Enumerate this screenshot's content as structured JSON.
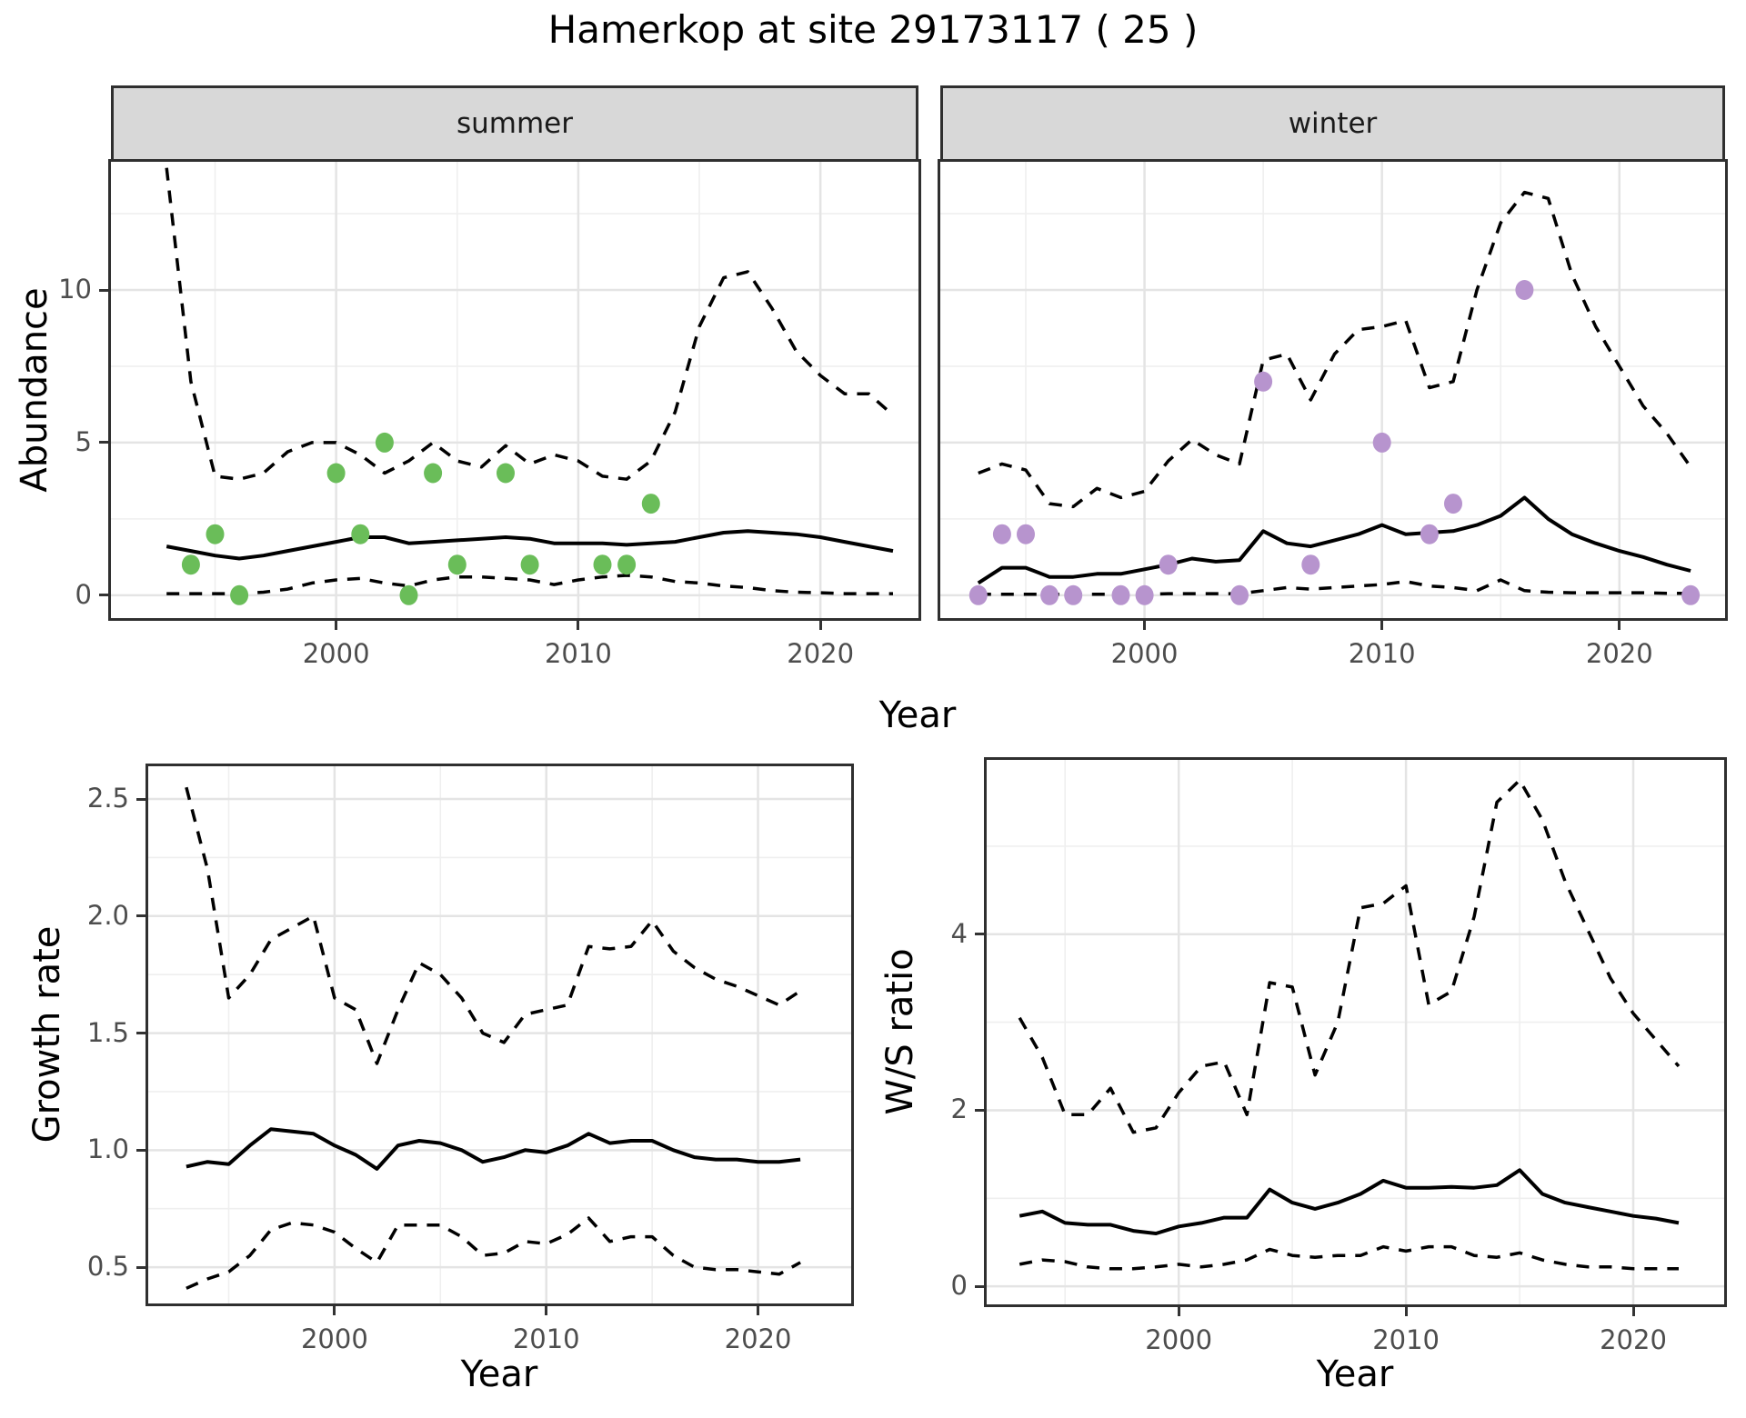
{
  "title": "Hamerkop at site 29173117 ( 25 )",
  "axes": {
    "abundance_label": "Abundance",
    "growth_label": "Growth rate",
    "ws_label": "W/S ratio",
    "year_label_top": "Year",
    "year_label_growth": "Year",
    "year_label_ws": "Year"
  },
  "facets": {
    "summer_label": "summer",
    "winter_label": "winter"
  },
  "colors": {
    "summer_point": "#6abd59",
    "winter_point": "#b794ce",
    "line": "#000000",
    "strip_bg": "#d8d8d8",
    "grid_major": "#e4e4e4",
    "grid_minor": "#efefef",
    "axis_text": "#4d4d4d"
  },
  "chart_data": [
    {
      "id": "abundance-summer",
      "type": "line",
      "panel": "summer",
      "facet_label": "summer",
      "ylabel": "Abundance",
      "xlabel": "Year",
      "x": [
        1993,
        1994,
        1995,
        1996,
        1997,
        1998,
        1999,
        2000,
        2001,
        2002,
        2003,
        2004,
        2005,
        2006,
        2007,
        2008,
        2009,
        2010,
        2011,
        2012,
        2013,
        2014,
        2015,
        2016,
        2017,
        2018,
        2019,
        2020,
        2021,
        2022,
        2023
      ],
      "x_ticks": {
        "major": [
          2000,
          2010,
          2020
        ],
        "labels": [
          "2000",
          "2010",
          "2020"
        ],
        "minor": [
          1995,
          2005,
          2015
        ]
      },
      "y_ticks": {
        "major": [
          0,
          5,
          10
        ],
        "labels": [
          "0",
          "5",
          "10"
        ],
        "minor": [
          2.5,
          7.5,
          12.5
        ],
        "show_labels": true
      },
      "series": [
        {
          "name": "upper_ci",
          "style": "dashed",
          "values": [
            14.0,
            7.0,
            3.9,
            3.8,
            4.0,
            4.7,
            5.0,
            5.0,
            4.6,
            4.0,
            4.4,
            5.0,
            4.4,
            4.2,
            4.9,
            4.3,
            4.6,
            4.4,
            3.9,
            3.8,
            4.4,
            6.0,
            8.8,
            10.4,
            10.6,
            9.4,
            8.0,
            7.2,
            6.6,
            6.6,
            5.9
          ]
        },
        {
          "name": "lower_ci",
          "style": "dashed",
          "values": [
            0.05,
            0.05,
            0.05,
            0.05,
            0.1,
            0.2,
            0.4,
            0.5,
            0.55,
            0.4,
            0.3,
            0.5,
            0.6,
            0.6,
            0.55,
            0.5,
            0.35,
            0.5,
            0.6,
            0.65,
            0.6,
            0.45,
            0.4,
            0.3,
            0.25,
            0.15,
            0.1,
            0.08,
            0.05,
            0.05,
            0.05
          ]
        },
        {
          "name": "median",
          "style": "solid",
          "values": [
            1.6,
            1.45,
            1.3,
            1.2,
            1.3,
            1.45,
            1.6,
            1.75,
            1.9,
            1.9,
            1.7,
            1.75,
            1.8,
            1.85,
            1.9,
            1.85,
            1.7,
            1.7,
            1.7,
            1.65,
            1.7,
            1.75,
            1.9,
            2.05,
            2.1,
            2.05,
            2.0,
            1.9,
            1.75,
            1.6,
            1.45
          ]
        }
      ],
      "points": {
        "color": "#6abd59",
        "data": [
          [
            1994,
            1
          ],
          [
            1995,
            2
          ],
          [
            1996,
            0
          ],
          [
            2000,
            4
          ],
          [
            2001,
            2
          ],
          [
            2002,
            5
          ],
          [
            2003,
            0
          ],
          [
            2004,
            4
          ],
          [
            2005,
            1
          ],
          [
            2007,
            4
          ],
          [
            2008,
            1
          ],
          [
            2011,
            1
          ],
          [
            2012,
            1
          ],
          [
            2013,
            3
          ]
        ]
      }
    },
    {
      "id": "abundance-winter",
      "type": "line",
      "panel": "winter",
      "facet_label": "winter",
      "ylabel": "Abundance",
      "xlabel": "Year",
      "x": [
        1993,
        1994,
        1995,
        1996,
        1997,
        1998,
        1999,
        2000,
        2001,
        2002,
        2003,
        2004,
        2005,
        2006,
        2007,
        2008,
        2009,
        2010,
        2011,
        2012,
        2013,
        2014,
        2015,
        2016,
        2017,
        2018,
        2019,
        2020,
        2021,
        2022,
        2023
      ],
      "x_ticks": {
        "major": [
          2000,
          2010,
          2020
        ],
        "labels": [
          "2000",
          "2010",
          "2020"
        ],
        "minor": [
          1995,
          2005,
          2015
        ]
      },
      "y_ticks": {
        "major": [
          0,
          5,
          10
        ],
        "labels": [
          "0",
          "5",
          "10"
        ],
        "minor": [
          2.5,
          7.5,
          12.5
        ],
        "show_labels": false
      },
      "series": [
        {
          "name": "upper_ci",
          "style": "dashed",
          "values": [
            4.0,
            4.3,
            4.1,
            3.0,
            2.9,
            3.5,
            3.2,
            3.4,
            4.4,
            5.1,
            4.6,
            4.3,
            7.7,
            7.9,
            6.4,
            7.9,
            8.7,
            8.8,
            9.0,
            6.8,
            7.0,
            10.0,
            12.2,
            13.2,
            13.0,
            10.5,
            8.8,
            7.5,
            6.2,
            5.3,
            4.2
          ]
        },
        {
          "name": "lower_ci",
          "style": "dashed",
          "values": [
            0.03,
            0.03,
            0.03,
            0.03,
            0.03,
            0.03,
            0.03,
            0.03,
            0.05,
            0.05,
            0.05,
            0.05,
            0.15,
            0.25,
            0.2,
            0.25,
            0.3,
            0.35,
            0.45,
            0.3,
            0.25,
            0.15,
            0.5,
            0.15,
            0.1,
            0.08,
            0.08,
            0.08,
            0.08,
            0.06,
            0.06
          ]
        },
        {
          "name": "median",
          "style": "solid",
          "values": [
            0.4,
            0.9,
            0.9,
            0.6,
            0.6,
            0.7,
            0.7,
            0.85,
            1.0,
            1.2,
            1.1,
            1.15,
            2.1,
            1.7,
            1.6,
            1.8,
            2.0,
            2.3,
            2.0,
            2.05,
            2.1,
            2.3,
            2.6,
            3.2,
            2.5,
            2.0,
            1.7,
            1.45,
            1.25,
            1.0,
            0.8
          ]
        }
      ],
      "points": {
        "color": "#b794ce",
        "data": [
          [
            1993,
            0
          ],
          [
            1994,
            2
          ],
          [
            1995,
            2
          ],
          [
            1996,
            0
          ],
          [
            1997,
            0
          ],
          [
            1999,
            0
          ],
          [
            2000,
            0
          ],
          [
            2001,
            1
          ],
          [
            2004,
            0
          ],
          [
            2005,
            7
          ],
          [
            2007,
            1
          ],
          [
            2010,
            5
          ],
          [
            2012,
            2
          ],
          [
            2013,
            3
          ],
          [
            2016,
            10
          ],
          [
            2023,
            0
          ]
        ]
      }
    },
    {
      "id": "growth-rate",
      "type": "line",
      "panel": "growth",
      "ylabel": "Growth rate",
      "xlabel": "Year",
      "x": [
        1993,
        1994,
        1995,
        1996,
        1997,
        1998,
        1999,
        2000,
        2001,
        2002,
        2003,
        2004,
        2005,
        2006,
        2007,
        2008,
        2009,
        2010,
        2011,
        2012,
        2013,
        2014,
        2015,
        2016,
        2017,
        2018,
        2019,
        2020,
        2021,
        2022
      ],
      "x_ticks": {
        "major": [
          2000,
          2010,
          2020
        ],
        "labels": [
          "2000",
          "2010",
          "2020"
        ],
        "minor": [
          1995,
          2005,
          2015
        ]
      },
      "y_ticks": {
        "major": [
          0.5,
          1.0,
          1.5,
          2.0,
          2.5
        ],
        "labels": [
          "0.5",
          "1.0",
          "1.5",
          "2.0",
          "2.5"
        ],
        "minor": [
          0.75,
          1.25,
          1.75,
          2.25
        ],
        "show_labels": true
      },
      "series": [
        {
          "name": "upper_ci",
          "style": "dashed",
          "values": [
            2.55,
            2.2,
            1.65,
            1.75,
            1.9,
            1.95,
            2.0,
            1.65,
            1.6,
            1.37,
            1.6,
            1.8,
            1.75,
            1.65,
            1.5,
            1.46,
            1.58,
            1.6,
            1.62,
            1.87,
            1.86,
            1.87,
            1.98,
            1.85,
            1.78,
            1.73,
            1.7,
            1.66,
            1.62,
            1.68
          ]
        },
        {
          "name": "lower_ci",
          "style": "dashed",
          "values": [
            0.41,
            0.45,
            0.48,
            0.55,
            0.66,
            0.69,
            0.68,
            0.65,
            0.58,
            0.52,
            0.68,
            0.68,
            0.68,
            0.63,
            0.55,
            0.56,
            0.61,
            0.6,
            0.64,
            0.71,
            0.61,
            0.63,
            0.63,
            0.55,
            0.5,
            0.49,
            0.49,
            0.48,
            0.47,
            0.52
          ]
        },
        {
          "name": "median",
          "style": "solid",
          "values": [
            0.93,
            0.95,
            0.94,
            1.02,
            1.09,
            1.08,
            1.07,
            1.02,
            0.98,
            0.92,
            1.02,
            1.04,
            1.03,
            1.0,
            0.95,
            0.97,
            1.0,
            0.99,
            1.02,
            1.07,
            1.03,
            1.04,
            1.04,
            1.0,
            0.97,
            0.96,
            0.96,
            0.95,
            0.95,
            0.96
          ]
        }
      ],
      "points": null
    },
    {
      "id": "ws-ratio",
      "type": "line",
      "panel": "ws",
      "ylabel": "W/S ratio",
      "xlabel": "Year",
      "x": [
        1993,
        1994,
        1995,
        1996,
        1997,
        1998,
        1999,
        2000,
        2001,
        2002,
        2003,
        2004,
        2005,
        2006,
        2007,
        2008,
        2009,
        2010,
        2011,
        2012,
        2013,
        2014,
        2015,
        2016,
        2017,
        2018,
        2019,
        2020,
        2021,
        2022
      ],
      "x_ticks": {
        "major": [
          2000,
          2010,
          2020
        ],
        "labels": [
          "2000",
          "2010",
          "2020"
        ],
        "minor": [
          1995,
          2005,
          2015
        ]
      },
      "y_ticks": {
        "major": [
          0,
          2,
          4
        ],
        "labels": [
          "0",
          "2",
          "4"
        ],
        "minor": [
          1,
          3,
          5
        ],
        "show_labels": true
      },
      "series": [
        {
          "name": "upper_ci",
          "style": "dashed",
          "values": [
            3.05,
            2.6,
            1.95,
            1.95,
            2.25,
            1.75,
            1.8,
            2.2,
            2.5,
            2.55,
            1.95,
            3.45,
            3.4,
            2.4,
            3.0,
            4.3,
            4.35,
            4.55,
            3.2,
            3.35,
            4.2,
            5.5,
            5.75,
            5.3,
            4.6,
            4.05,
            3.5,
            3.1,
            2.8,
            2.5
          ]
        },
        {
          "name": "lower_ci",
          "style": "dashed",
          "values": [
            0.25,
            0.3,
            0.28,
            0.22,
            0.2,
            0.2,
            0.22,
            0.25,
            0.22,
            0.25,
            0.3,
            0.42,
            0.35,
            0.33,
            0.35,
            0.35,
            0.45,
            0.4,
            0.45,
            0.45,
            0.35,
            0.33,
            0.38,
            0.3,
            0.25,
            0.22,
            0.22,
            0.2,
            0.2,
            0.2
          ]
        },
        {
          "name": "median",
          "style": "solid",
          "values": [
            0.8,
            0.85,
            0.72,
            0.7,
            0.7,
            0.63,
            0.6,
            0.68,
            0.72,
            0.78,
            0.78,
            1.1,
            0.95,
            0.88,
            0.95,
            1.05,
            1.2,
            1.12,
            1.12,
            1.13,
            1.12,
            1.15,
            1.32,
            1.05,
            0.95,
            0.9,
            0.85,
            0.8,
            0.77,
            0.72
          ]
        }
      ],
      "points": null
    }
  ]
}
